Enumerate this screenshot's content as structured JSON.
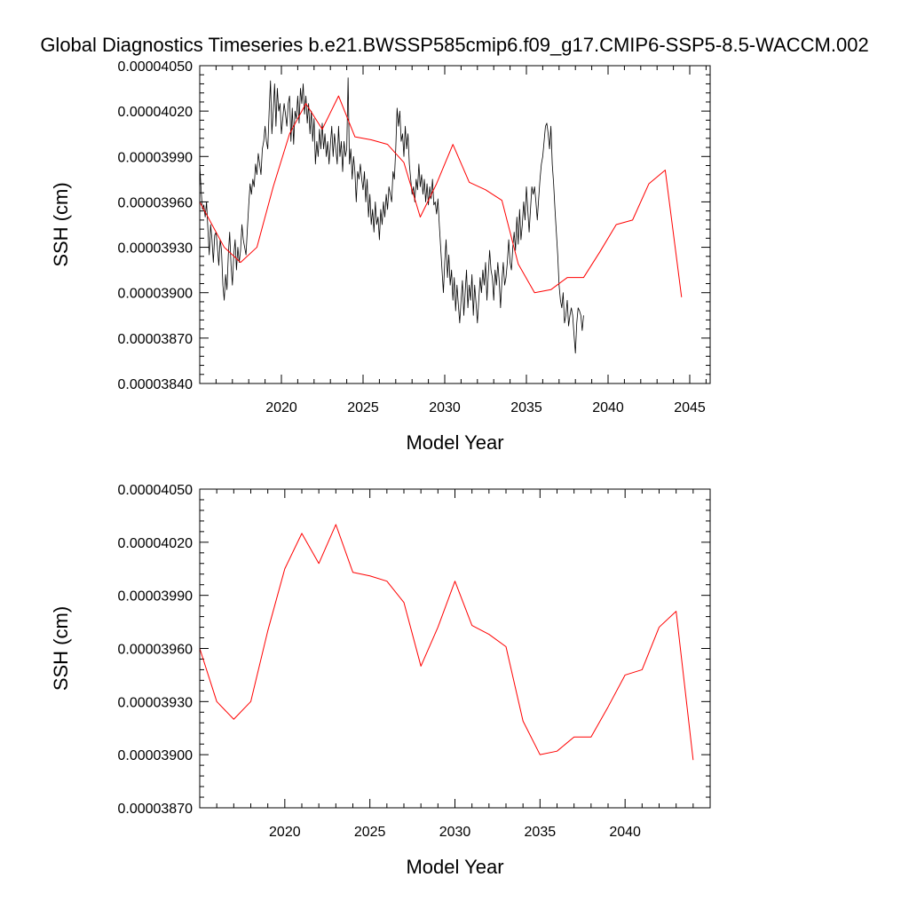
{
  "figure": {
    "title": "Global Diagnostics Timeseries b.e21.BWSSP585cmip6.f09_g17.CMIP6-SSP5-8.5-WACCM.002",
    "colors": {
      "monthly": "#000000",
      "annual": "#ff0000"
    }
  },
  "chart_data": [
    {
      "type": "line",
      "xlabel": "Model Year",
      "ylabel": "SSH (cm)",
      "xlim": [
        2015.0,
        2046.25
      ],
      "ylim": [
        3.84e-05,
        4.05e-05
      ],
      "xticks": [
        2020,
        2025,
        2030,
        2035,
        2040,
        2045
      ],
      "xtick_labels": [
        "2020",
        "2025",
        "2030",
        "2035",
        "2040",
        "2045"
      ],
      "yticks": [
        3.84e-05,
        3.87e-05,
        3.9e-05,
        3.93e-05,
        3.96e-05,
        3.99e-05,
        4.02e-05,
        4.05e-05
      ],
      "ytick_labels": [
        "0.00003840",
        "0.00003870",
        "0.00003900",
        "0.00003930",
        "0.00003960",
        "0.00003990",
        "0.00004020",
        "0.00004050"
      ],
      "series": [
        {
          "style": "monthly",
          "x_start": 2015.0,
          "x_step": 0.083333,
          "values": [
            3.985e-05,
            3.968e-05,
            3.955e-05,
            3.958e-05,
            3.95e-05,
            3.96e-05,
            3.942e-05,
            3.925e-05,
            3.945e-05,
            3.935e-05,
            3.92e-05,
            3.938e-05,
            3.94e-05,
            3.93e-05,
            3.918e-05,
            3.935e-05,
            3.928e-05,
            3.905e-05,
            3.895e-05,
            3.912e-05,
            3.902e-05,
            3.925e-05,
            3.94e-05,
            3.918e-05,
            3.905e-05,
            3.925e-05,
            3.935e-05,
            3.915e-05,
            3.93e-05,
            3.92e-05,
            3.928e-05,
            3.945e-05,
            3.935e-05,
            3.93e-05,
            3.925e-05,
            3.942e-05,
            3.958e-05,
            3.972e-05,
            3.965e-05,
            3.975e-05,
            3.97e-05,
            3.985e-05,
            3.978e-05,
            3.992e-05,
            3.985e-05,
            3.978e-05,
            3.995e-05,
            4e-05,
            4.01e-05,
            4e-05,
            3.995e-05,
            4.02e-05,
            4.04e-05,
            4.005e-05,
            4.02e-05,
            4.038e-05,
            4.01e-05,
            4.035e-05,
            4.02e-05,
            4.025e-05,
            4.005e-05,
            4.015e-05,
            4.025e-05,
            4.018e-05,
            4.01e-05,
            4.025e-05,
            4.03e-05,
            4e-05,
            4.022e-05,
            3.998e-05,
            4.02e-05,
            4.015e-05,
            4.03e-05,
            4.012e-05,
            4.035e-05,
            4.025e-05,
            4.038e-05,
            4.018e-05,
            4.03e-05,
            4.012e-05,
            4.025e-05,
            4.005e-05,
            4.02e-05,
            4e-05,
            4.015e-05,
            3.985e-05,
            4e-05,
            3.99e-05,
            4.008e-05,
            3.995e-05,
            4.012e-05,
            3.995e-05,
            4.005e-05,
            3.99e-05,
            4e-05,
            3.985e-05,
            3.998e-05,
            4.01e-05,
            3.99e-05,
            4.005e-05,
            3.995e-05,
            3.985e-05,
            4.01e-05,
            3.99e-05,
            4e-05,
            3.98e-05,
            4e-05,
            3.99e-05,
            3.995e-05,
            4.042e-05,
            3.985e-05,
            3.995e-05,
            3.975e-05,
            3.99e-05,
            3.98e-05,
            3.96e-05,
            3.98e-05,
            3.975e-05,
            3.985e-05,
            3.975e-05,
            3.968e-05,
            3.98e-05,
            3.96e-05,
            3.975e-05,
            3.95e-05,
            3.965e-05,
            3.945e-05,
            3.955e-05,
            3.94e-05,
            3.96e-05,
            3.945e-05,
            3.95e-05,
            3.935e-05,
            3.955e-05,
            3.945e-05,
            3.96e-05,
            3.95e-05,
            3.965e-05,
            3.955e-05,
            3.97e-05,
            3.965e-05,
            3.96e-05,
            3.98e-05,
            3.975e-05,
            3.995e-05,
            4.022e-05,
            4.01e-05,
            4.02e-05,
            4e-05,
            4.005e-05,
            3.99e-05,
            4.01e-05,
            3.995e-05,
            4.005e-05,
            3.985e-05,
            3.975e-05,
            3.965e-05,
            3.97e-05,
            3.96e-05,
            3.975e-05,
            3.968e-05,
            3.985e-05,
            3.97e-05,
            3.978e-05,
            3.965e-05,
            3.975e-05,
            3.96e-05,
            3.972e-05,
            3.958e-05,
            3.97e-05,
            3.962e-05,
            3.975e-05,
            3.958e-05,
            3.96e-05,
            3.952e-05,
            3.962e-05,
            3.945e-05,
            3.93e-05,
            3.915e-05,
            3.9e-05,
            3.92e-05,
            3.935e-05,
            3.91e-05,
            3.925e-05,
            3.905e-05,
            3.915e-05,
            3.895e-05,
            3.91e-05,
            3.888e-05,
            3.905e-05,
            3.892e-05,
            3.88e-05,
            3.895e-05,
            3.908e-05,
            3.885e-05,
            3.9e-05,
            3.915e-05,
            3.89e-05,
            3.905e-05,
            3.895e-05,
            3.912e-05,
            3.885e-05,
            3.905e-05,
            3.893e-05,
            3.88e-05,
            3.895e-05,
            3.91e-05,
            3.9e-05,
            3.915e-05,
            3.905e-05,
            3.92e-05,
            3.895e-05,
            3.912e-05,
            3.928e-05,
            3.915e-05,
            3.91e-05,
            3.895e-05,
            3.915e-05,
            3.905e-05,
            3.92e-05,
            3.908e-05,
            3.89e-05,
            3.908e-05,
            3.92e-05,
            3.905e-05,
            3.91e-05,
            3.92e-05,
            3.935e-05,
            3.92e-05,
            3.915e-05,
            3.93e-05,
            3.94e-05,
            3.928e-05,
            3.95e-05,
            3.932e-05,
            3.955e-05,
            3.935e-05,
            3.945e-05,
            3.96e-05,
            3.948e-05,
            3.97e-05,
            3.955e-05,
            3.94e-05,
            3.955e-05,
            3.97e-05,
            3.965e-05,
            3.97e-05,
            3.96e-05,
            3.948e-05,
            3.962e-05,
            3.975e-05,
            3.985e-05,
            3.99e-05,
            4e-05,
            4.01e-05,
            4.012e-05,
            4.005e-05,
            3.995e-05,
            4.01e-05,
            3.985e-05,
            3.972e-05,
            3.955e-05,
            3.94e-05,
            3.925e-05,
            3.905e-05,
            3.895e-05,
            3.89e-05,
            3.9e-05,
            3.88e-05,
            3.885e-05,
            3.895e-05,
            3.878e-05,
            3.885e-05,
            3.89e-05,
            3.885e-05,
            3.872e-05,
            3.86e-05,
            3.88e-05,
            3.89e-05,
            3.888e-05,
            3.885e-05,
            3.875e-05,
            3.885e-05
          ]
        },
        {
          "style": "annual",
          "x": [
            2015.0,
            2016.5,
            2017.5,
            2018.5,
            2019.5,
            2020.5,
            2021.5,
            2022.5,
            2023.5,
            2024.5,
            2025.5,
            2026.5,
            2027.5,
            2028.5,
            2029.5,
            2030.5,
            2031.5,
            2032.5,
            2033.5,
            2034.5,
            2035.5,
            2036.5,
            2037.5,
            2038.5,
            2039.5,
            2040.5,
            2041.5,
            2042.5,
            2043.5,
            2044.5
          ],
          "values": [
            3.96e-05,
            3.93e-05,
            3.92e-05,
            3.93e-05,
            3.97e-05,
            4.005e-05,
            4.025e-05,
            4.008e-05,
            4.03e-05,
            4.003e-05,
            4.001e-05,
            3.998e-05,
            3.986e-05,
            3.95e-05,
            3.972e-05,
            3.998e-05,
            3.973e-05,
            3.968e-05,
            3.961e-05,
            3.919e-05,
            3.9e-05,
            3.902e-05,
            3.91e-05,
            3.91e-05,
            3.927e-05,
            3.945e-05,
            3.948e-05,
            3.972e-05,
            3.981e-05,
            3.897e-05
          ]
        }
      ]
    },
    {
      "type": "line",
      "xlabel": "Model Year",
      "ylabel": "SSH (cm)",
      "xlim": [
        2015.0,
        2045.0
      ],
      "ylim": [
        3.87e-05,
        4.05e-05
      ],
      "xticks": [
        2020,
        2025,
        2030,
        2035,
        2040
      ],
      "xtick_labels": [
        "2020",
        "2025",
        "2030",
        "2035",
        "2040"
      ],
      "yticks": [
        3.87e-05,
        3.9e-05,
        3.93e-05,
        3.96e-05,
        3.99e-05,
        4.02e-05,
        4.05e-05
      ],
      "ytick_labels": [
        "0.00003870",
        "0.00003900",
        "0.00003930",
        "0.00003960",
        "0.00003990",
        "0.00004020",
        "0.00004050"
      ],
      "series": [
        {
          "style": "annual",
          "x": [
            2015.0,
            2016.0,
            2017.0,
            2018.0,
            2019.0,
            2020.0,
            2021.0,
            2022.0,
            2023.0,
            2024.0,
            2025.0,
            2026.0,
            2027.0,
            2028.0,
            2029.0,
            2030.0,
            2031.0,
            2032.0,
            2033.0,
            2034.0,
            2035.0,
            2036.0,
            2037.0,
            2038.0,
            2039.0,
            2040.0,
            2041.0,
            2042.0,
            2043.0,
            2044.0
          ],
          "values": [
            3.96e-05,
            3.93e-05,
            3.92e-05,
            3.93e-05,
            3.97e-05,
            4.005e-05,
            4.025e-05,
            4.008e-05,
            4.03e-05,
            4.003e-05,
            4.001e-05,
            3.998e-05,
            3.986e-05,
            3.95e-05,
            3.972e-05,
            3.998e-05,
            3.973e-05,
            3.968e-05,
            3.961e-05,
            3.919e-05,
            3.9e-05,
            3.902e-05,
            3.91e-05,
            3.91e-05,
            3.927e-05,
            3.945e-05,
            3.948e-05,
            3.972e-05,
            3.981e-05,
            3.897e-05
          ]
        }
      ]
    }
  ]
}
